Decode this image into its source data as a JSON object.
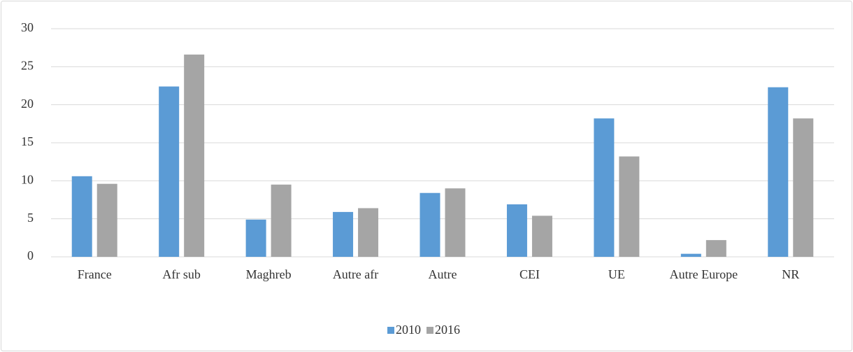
{
  "chart_data": {
    "type": "bar",
    "categories": [
      "France",
      "Afr sub",
      "Maghreb",
      "Autre afr",
      "Autre",
      "CEI",
      "UE",
      "Autre Europe",
      "NR"
    ],
    "series": [
      {
        "name": "2010",
        "color": "#5b9bd5",
        "values": [
          10.6,
          22.4,
          4.9,
          5.9,
          8.4,
          6.9,
          18.2,
          0.4,
          22.3
        ]
      },
      {
        "name": "2016",
        "color": "#a5a5a5",
        "values": [
          9.6,
          26.6,
          9.5,
          6.4,
          9.0,
          5.4,
          13.2,
          2.2,
          18.2
        ]
      }
    ],
    "ylim": [
      0,
      30
    ],
    "yticks": [
      0,
      5,
      10,
      15,
      20,
      25,
      30
    ],
    "grid": true,
    "legend": "bottom"
  }
}
